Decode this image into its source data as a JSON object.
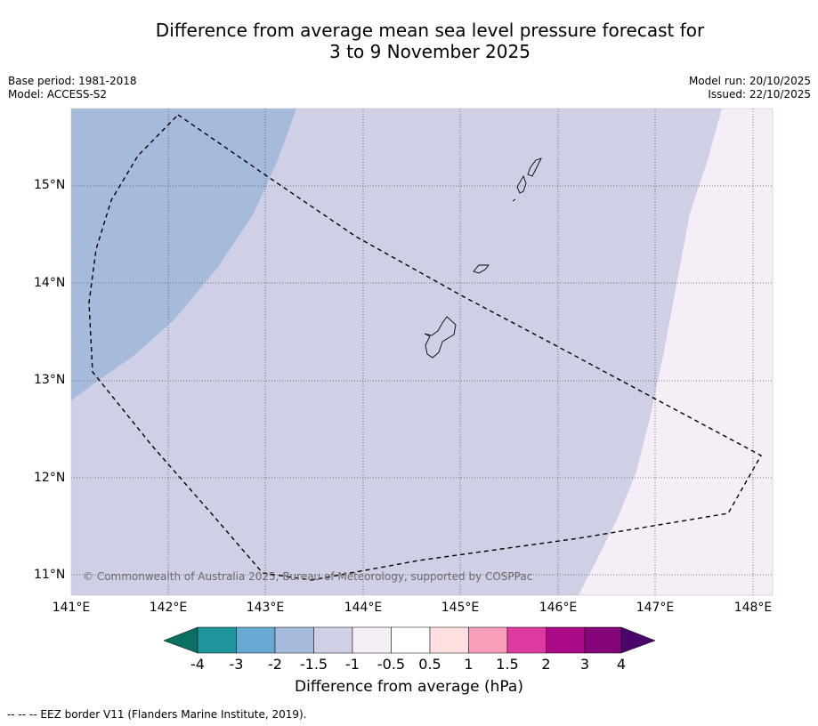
{
  "title": {
    "line1": "Difference from average mean sea level pressure forecast for",
    "line2": "3 to 9 November 2025"
  },
  "meta": {
    "base_period": "Base period: 1981-2018",
    "model": "Model: ACCESS-S2",
    "model_run": "Model run: 20/10/2025",
    "issued": "Issued: 22/10/2025"
  },
  "map": {
    "lat_labels": [
      "15°N",
      "14°N",
      "13°N",
      "12°N",
      "11°N"
    ],
    "lon_labels": [
      "141°E",
      "142°E",
      "143°E",
      "144°E",
      "145°E",
      "146°E",
      "147°E",
      "148°E"
    ],
    "copyright": "© Commonwealth of Australia 2025, Bureau of Meteorology, supported by COSPPac",
    "zones": [
      {
        "name": "-2 to -1.5",
        "color": "#a6badb"
      },
      {
        "name": "-1.5 to -1",
        "color": "#cfd0e6"
      },
      {
        "name": "-1 to -0.5",
        "color": "#f5eef7"
      }
    ]
  },
  "colorbar": {
    "labels": [
      "-4",
      "-3",
      "-2",
      "-1.5",
      "-1",
      "-0.5",
      "0.5",
      "1",
      "1.5",
      "2",
      "3",
      "4"
    ],
    "colors": [
      "#0b6f63",
      "#1e9598",
      "#68a9d2",
      "#a6badb",
      "#cfd0e6",
      "#f5eef7",
      "#ffffff",
      "#ffdfdf",
      "#f8a0ba",
      "#df3a9e",
      "#ab0a86",
      "#830578",
      "#4b0469"
    ],
    "title": "Difference from average (hPa)"
  },
  "footnote": "--  --  -- EEZ border V11 (Flanders Marine Institute, 2019)."
}
